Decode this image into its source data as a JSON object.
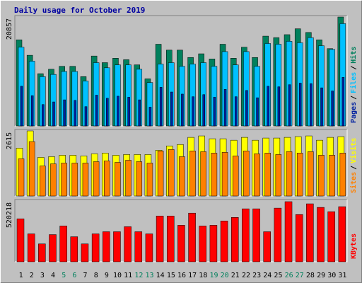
{
  "chart_data": [
    {
      "type": "bar",
      "title": "Daily usage for October 2019",
      "legend_separator": "/",
      "ylim": [
        0,
        20857
      ],
      "yticks": [
        20857
      ],
      "series": [
        {
          "name": "Hits",
          "color": "#00805c",
          "values": [
            16488,
            13529,
            10006,
            10851,
            11415,
            11415,
            9442,
            13388,
            12120,
            12965,
            12683,
            11697,
            9019,
            15643,
            14515,
            14515,
            13106,
            13811,
            12824,
            15643,
            12965,
            15079,
            13106,
            17193,
            16911,
            17475,
            18602,
            17897,
            16488,
            14797,
            20857
          ]
        },
        {
          "name": "Files",
          "color": "#00c0ff",
          "values": [
            15076,
            12399,
            9440,
            9863,
            10427,
            10427,
            8595,
            12117,
            11131,
            11695,
            11695,
            10849,
            8313,
            11836,
            12117,
            11413,
            11836,
            12117,
            11413,
            14231,
            11695,
            14231,
            11413,
            15781,
            15640,
            16204,
            15922,
            16908,
            15358,
            14654,
            19585
          ]
        },
        {
          "name": "Pages",
          "color": "#0020a0",
          "values": [
            7600,
            5800,
            4100,
            4600,
            5000,
            4900,
            3700,
            5900,
            5300,
            5700,
            5500,
            5000,
            3600,
            7400,
            6500,
            6100,
            5600,
            6000,
            5500,
            7000,
            5600,
            6800,
            5400,
            7600,
            7500,
            7900,
            8200,
            8100,
            7300,
            6700,
            9300
          ]
        }
      ]
    },
    {
      "type": "bar",
      "ylim": [
        0,
        2615
      ],
      "yticks": [
        2615
      ],
      "series": [
        {
          "name": "Visits",
          "color": "#ffff00",
          "values": [
            1925,
            2615,
            1552,
            1580,
            1638,
            1638,
            1609,
            1695,
            1724,
            1638,
            1667,
            1667,
            1667,
            1839,
            2012,
            2069,
            2356,
            2414,
            2299,
            2299,
            2241,
            2356,
            2241,
            2328,
            2328,
            2356,
            2385,
            2414,
            2241,
            2356,
            2385
          ]
        },
        {
          "name": "Sites",
          "color": "#ff8000",
          "values": [
            1494,
            2184,
            1207,
            1293,
            1322,
            1322,
            1322,
            1379,
            1408,
            1350,
            1437,
            1379,
            1322,
            1810,
            1868,
            1580,
            1810,
            1782,
            1724,
            1753,
            1609,
            1810,
            1695,
            1724,
            1667,
            1782,
            1724,
            1782,
            1638,
            1638,
            1724
          ]
        }
      ]
    },
    {
      "type": "bar",
      "ylim": [
        0,
        520218
      ],
      "yticks": [
        520218
      ],
      "categories": [
        "1",
        "2",
        "3",
        "4",
        "5",
        "6",
        "7",
        "8",
        "9",
        "10",
        "11",
        "12",
        "13",
        "14",
        "15",
        "16",
        "17",
        "18",
        "19",
        "20",
        "21",
        "22",
        "23",
        "24",
        "25",
        "26",
        "27",
        "28",
        "29",
        "30",
        "31"
      ],
      "category_colors": [
        "#000000",
        "#000000",
        "#000000",
        "#000000",
        "#00805c",
        "#00805c",
        "#000000",
        "#000000",
        "#000000",
        "#000000",
        "#000000",
        "#00805c",
        "#00805c",
        "#000000",
        "#000000",
        "#000000",
        "#000000",
        "#000000",
        "#00805c",
        "#00805c",
        "#000000",
        "#000000",
        "#000000",
        "#000000",
        "#000000",
        "#00805c",
        "#00805c",
        "#000000",
        "#000000",
        "#000000",
        "#000000"
      ],
      "series": [
        {
          "name": "KBytes",
          "color": "#ff0000",
          "values": [
            367213,
            238688,
            153005,
            232568,
            306011,
            214208,
            153005,
            238688,
            257049,
            257049,
            299891,
            257049,
            238688,
            391694,
            391694,
            312131,
            416174,
            306011,
            312131,
            348852,
            379453,
            452896,
            452896,
            257049,
            459016,
            514098,
            403934,
            495737,
            465136,
            428415,
            471257
          ]
        }
      ]
    }
  ]
}
